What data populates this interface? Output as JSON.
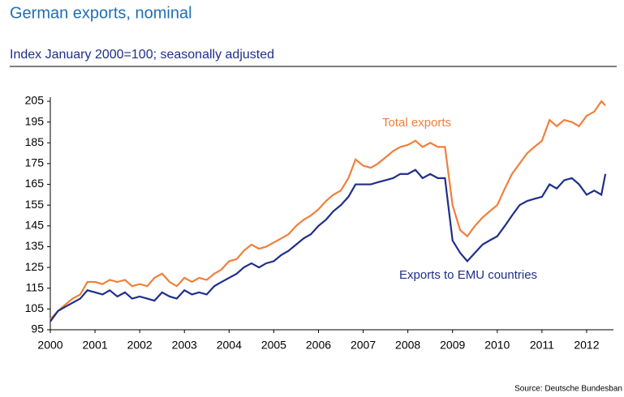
{
  "chart_data": {
    "type": "line",
    "title": "German exports, nominal",
    "subtitle": "Index January 2000=100; seasonally adjusted",
    "source": "Source: Deutsche Bundesban",
    "annotations": [
      "Total exports",
      "Exports to EMU countries"
    ],
    "x": [
      2000,
      2000.17,
      2000.33,
      2000.5,
      2000.67,
      2000.83,
      2001,
      2001.17,
      2001.33,
      2001.5,
      2001.67,
      2001.83,
      2002,
      2002.17,
      2002.33,
      2002.5,
      2002.67,
      2002.83,
      2003,
      2003.17,
      2003.33,
      2003.5,
      2003.67,
      2003.83,
      2004,
      2004.17,
      2004.33,
      2004.5,
      2004.67,
      2004.83,
      2005,
      2005.17,
      2005.33,
      2005.5,
      2005.67,
      2005.83,
      2006,
      2006.17,
      2006.33,
      2006.5,
      2006.67,
      2006.83,
      2007,
      2007.17,
      2007.33,
      2007.5,
      2007.67,
      2007.83,
      2008,
      2008.17,
      2008.33,
      2008.5,
      2008.67,
      2008.83,
      2009,
      2009.17,
      2009.33,
      2009.5,
      2009.67,
      2009.83,
      2010,
      2010.17,
      2010.33,
      2010.5,
      2010.67,
      2010.83,
      2011,
      2011.17,
      2011.33,
      2011.5,
      2011.67,
      2011.83,
      2012,
      2012.17,
      2012.33,
      2012.42
    ],
    "series": [
      {
        "name": "Total exports",
        "color": "#f07f3c",
        "values": [
          100,
          104,
          107,
          110,
          112,
          118,
          118,
          117,
          119,
          118,
          119,
          116,
          117,
          116,
          120,
          122,
          118,
          116,
          120,
          118,
          120,
          119,
          122,
          124,
          128,
          129,
          133,
          136,
          134,
          135,
          137,
          139,
          141,
          145,
          148,
          150,
          153,
          157,
          160,
          162,
          168,
          177,
          174,
          173,
          175,
          178,
          181,
          183,
          184,
          186,
          183,
          185,
          183,
          183,
          155,
          143,
          140,
          145,
          149,
          152,
          155,
          163,
          170,
          175,
          180,
          183,
          186,
          196,
          193,
          196,
          195,
          193,
          198,
          200,
          205,
          203
        ]
      },
      {
        "name": "Exports to EMU countries",
        "color": "#1f2f8a",
        "values": [
          99,
          104,
          106,
          108,
          110,
          114,
          113,
          112,
          114,
          111,
          113,
          110,
          111,
          110,
          109,
          113,
          111,
          110,
          114,
          112,
          113,
          112,
          116,
          118,
          120,
          122,
          125,
          127,
          125,
          127,
          128,
          131,
          133,
          136,
          139,
          141,
          145,
          148,
          152,
          155,
          159,
          165,
          165,
          165,
          166,
          167,
          168,
          170,
          170,
          172,
          168,
          170,
          168,
          168,
          138,
          132,
          128,
          132,
          136,
          138,
          140,
          145,
          150,
          155,
          157,
          158,
          159,
          165,
          163,
          167,
          168,
          165,
          160,
          162,
          160,
          170
        ]
      }
    ],
    "xlim": [
      2000,
      2012.6
    ],
    "xticks": [
      2000,
      2001,
      2002,
      2003,
      2004,
      2005,
      2006,
      2007,
      2008,
      2009,
      2010,
      2011,
      2012
    ],
    "ylim": [
      95,
      205
    ],
    "yticks": [
      95,
      105,
      115,
      125,
      135,
      145,
      155,
      165,
      175,
      185,
      195,
      205
    ]
  }
}
